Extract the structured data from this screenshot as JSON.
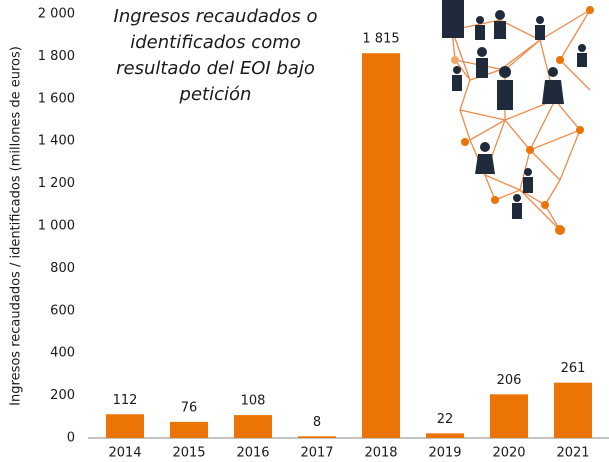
{
  "chart_data": {
    "type": "bar",
    "title": "Ingresos recaudados o identificados como resultado del EOI bajo petición",
    "y_label": "Ingresos recaudados / identificados (millones de euros)",
    "categories": [
      "2014",
      "2015",
      "2016",
      "2017",
      "2018",
      "2019",
      "2020",
      "2021"
    ],
    "values": [
      112,
      76,
      108,
      8,
      1815,
      22,
      206,
      261
    ],
    "value_labels": [
      "112",
      "76",
      "108",
      "8",
      "1 815",
      "22",
      "206",
      "261"
    ],
    "color": "#ec7404",
    "ylim": [
      0,
      2000
    ],
    "yticks": [
      0,
      200,
      400,
      600,
      800,
      {
        "value": 1000,
        "label": "1 000"
      },
      {
        "value": 1200,
        "label": "1 200"
      },
      {
        "value": 1400,
        "label": "1 400"
      },
      {
        "value": 1600,
        "label": "1 600"
      },
      {
        "value": 1800,
        "label": "1 800"
      },
      {
        "value": 2000,
        "label": "2 000"
      }
    ]
  }
}
